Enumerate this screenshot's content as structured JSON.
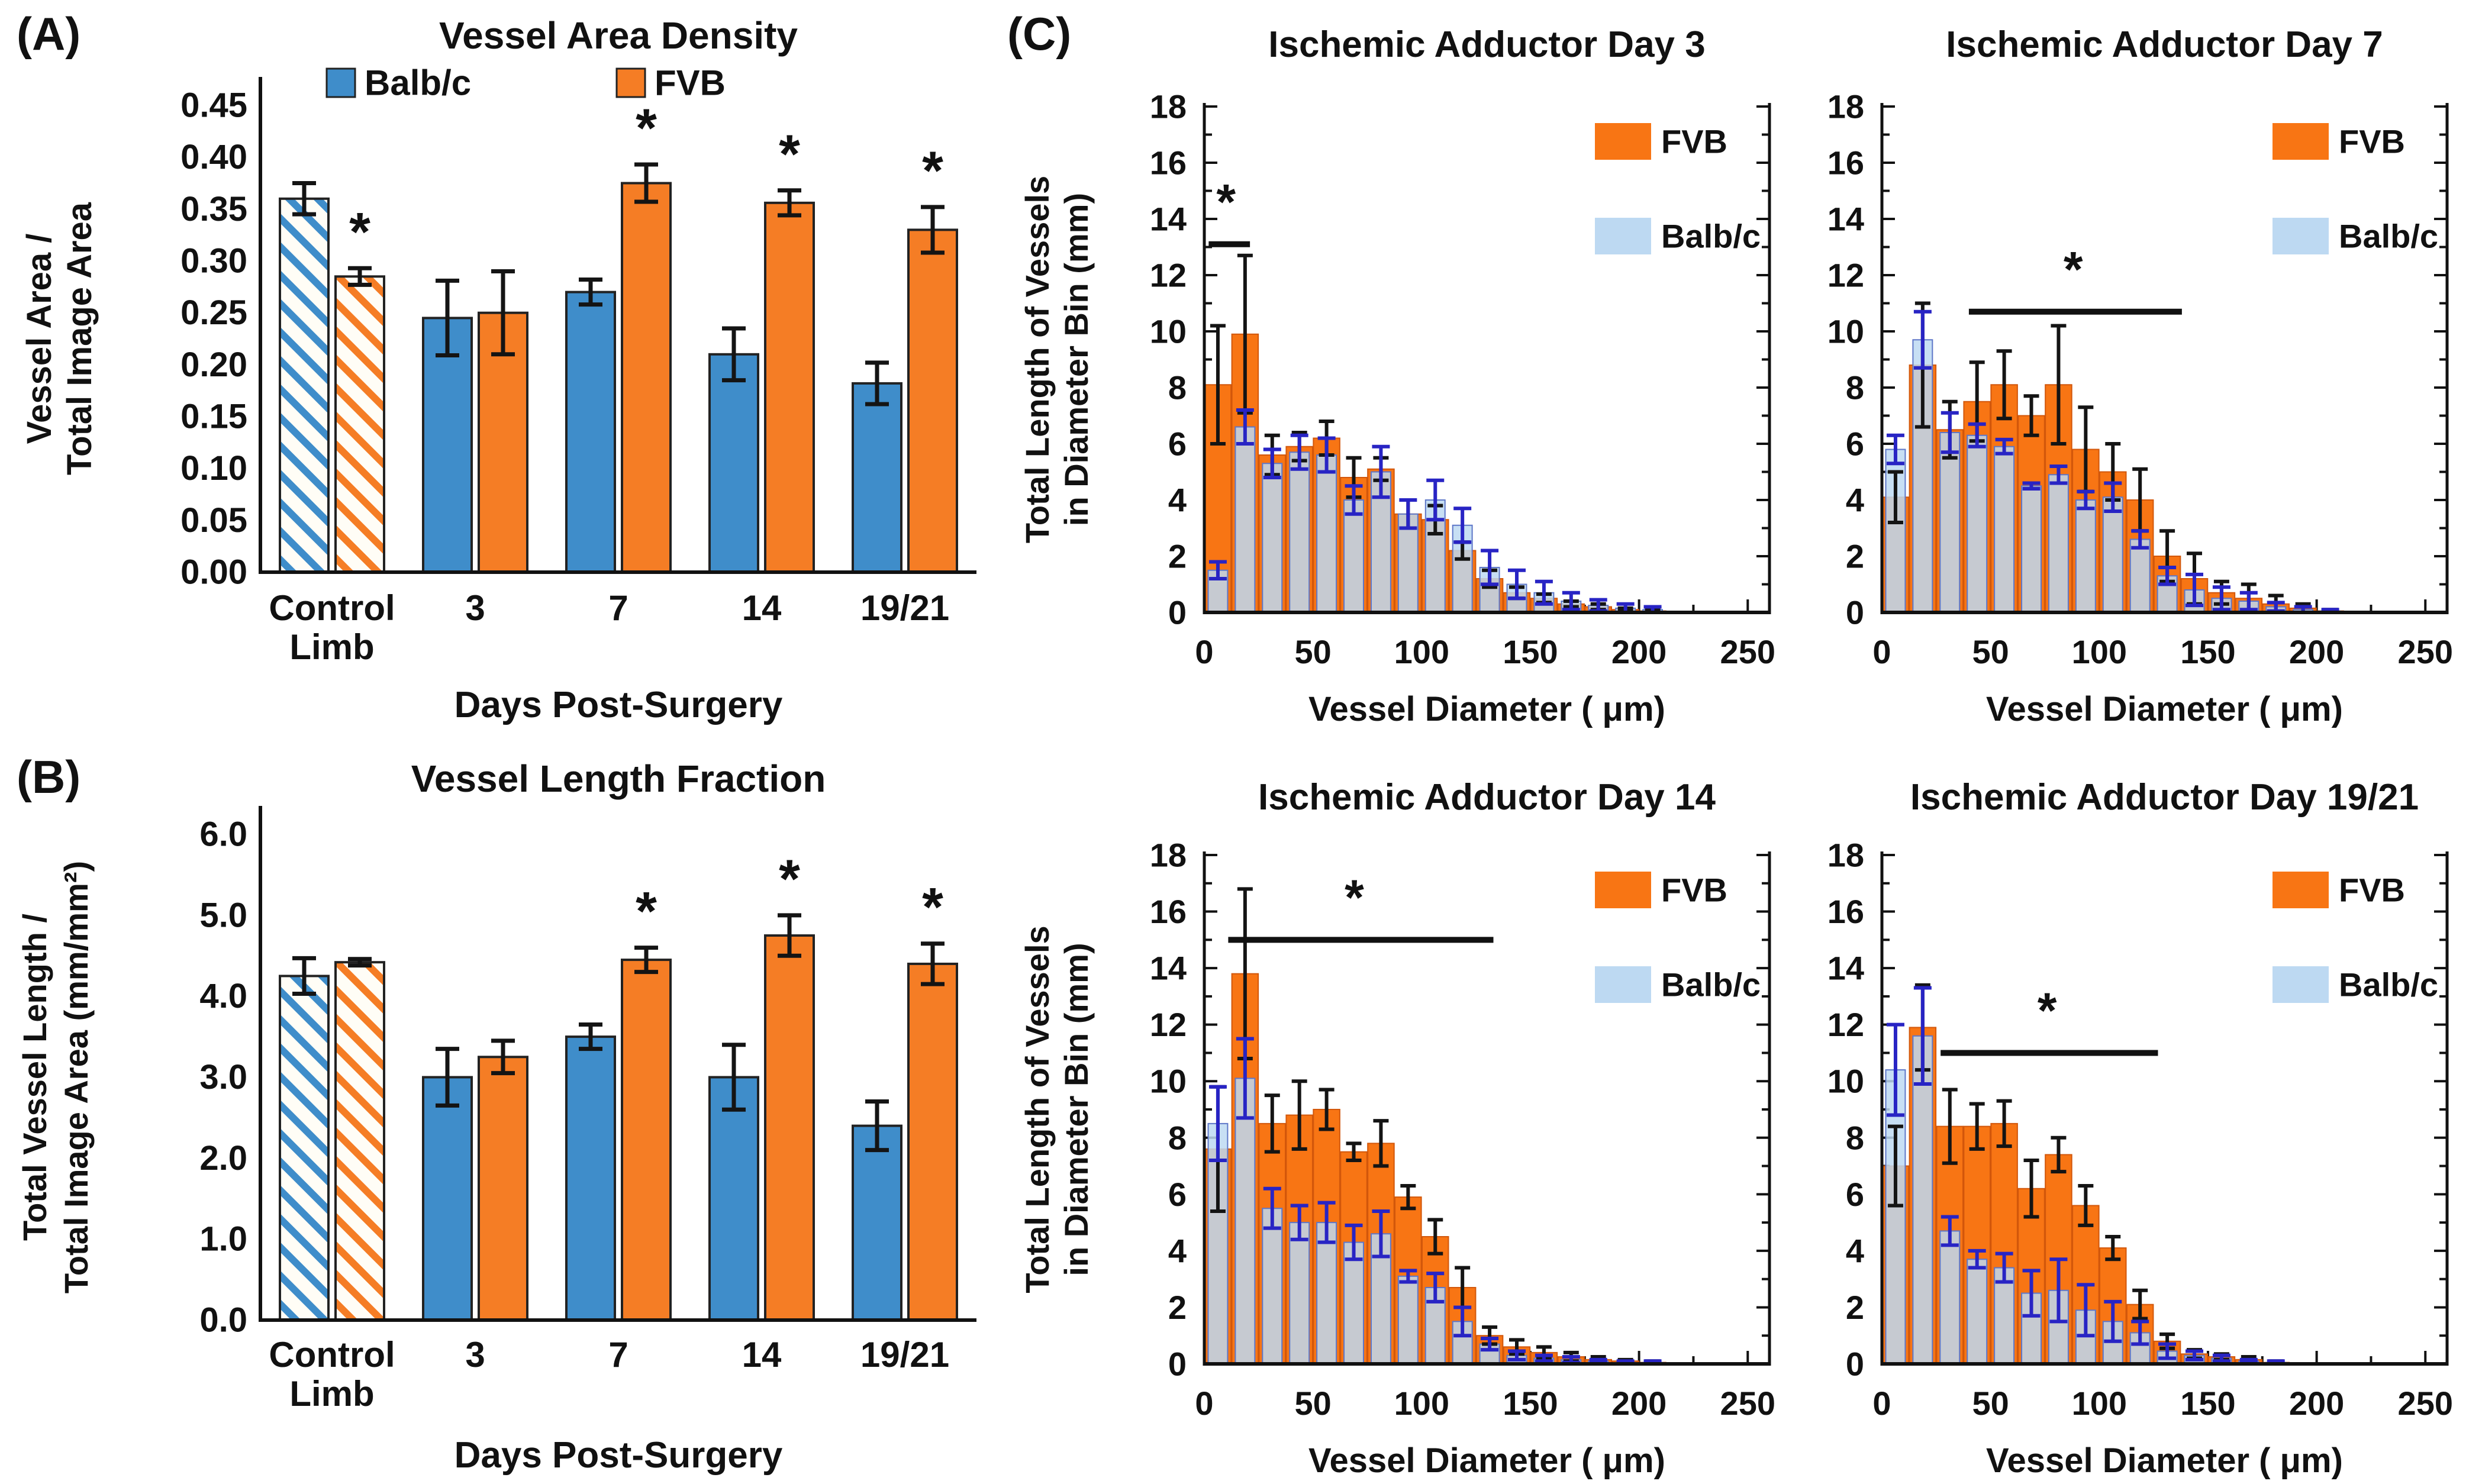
{
  "figure": {
    "panel_labels": {
      "a": "(A)",
      "b": "(B)",
      "c": "(C)"
    },
    "colors": {
      "balbc_solid": "#3F8DCA",
      "fvb_solid": "#F57D25",
      "fvb_hist": "#F87514",
      "balbc_hist": "#BDD9F2",
      "error_navy": "#2824C4",
      "error_black": "#141414",
      "axis": "#111111",
      "hatch_bg": "#FFFDF6"
    }
  },
  "chart_data": [
    {
      "id": "vessel_area_density",
      "type": "bar",
      "title": "Vessel Area Density",
      "ylabel_lines": [
        "Vessel Area /",
        "Total Image Area"
      ],
      "xlabel": "Days Post-Surgery",
      "categories": [
        "Control\nLimb",
        "3",
        "7",
        "14",
        "19/21"
      ],
      "hatched_categories": [
        0
      ],
      "ylim": [
        0,
        0.45
      ],
      "yticks": [
        "0.00",
        "0.05",
        "0.10",
        "0.15",
        "0.20",
        "0.25",
        "0.30",
        "0.35",
        "0.40",
        "0.45"
      ],
      "legend": {
        "show": true,
        "labels": [
          "Balb/c",
          "FVB"
        ]
      },
      "series": [
        {
          "name": "Balb/c",
          "values": [
            0.36,
            0.245,
            0.27,
            0.21,
            0.182
          ],
          "errors": [
            0.015,
            0.036,
            0.012,
            0.025,
            0.02
          ]
        },
        {
          "name": "FVB",
          "values": [
            0.285,
            0.25,
            0.375,
            0.356,
            0.33
          ],
          "errors": [
            0.008,
            0.04,
            0.018,
            0.012,
            0.022
          ]
        }
      ],
      "stars": [
        {
          "series": "FVB",
          "category": 0
        },
        {
          "series": "FVB",
          "category": 2
        },
        {
          "series": "FVB",
          "category": 3
        },
        {
          "series": "FVB",
          "category": 4
        }
      ]
    },
    {
      "id": "vessel_length_fraction",
      "type": "bar",
      "title": "Vessel Length Fraction",
      "ylabel_lines": [
        "Total Vessel Length /",
        "Total Image Area (mm/mm²)"
      ],
      "xlabel": "Days Post-Surgery",
      "categories": [
        "Control\nLimb",
        "3",
        "7",
        "14",
        "19/21"
      ],
      "hatched_categories": [
        0
      ],
      "ylim": [
        0,
        6
      ],
      "yticks": [
        "0.0",
        "1.0",
        "2.0",
        "3.0",
        "4.0",
        "5.0",
        "6.0"
      ],
      "legend": {
        "show": false,
        "labels": [
          "Balb/c",
          "FVB"
        ]
      },
      "series": [
        {
          "name": "Balb/c",
          "values": [
            4.25,
            3.0,
            3.5,
            3.0,
            2.4
          ],
          "errors": [
            0.22,
            0.35,
            0.15,
            0.4,
            0.3
          ]
        },
        {
          "name": "FVB",
          "values": [
            4.42,
            3.25,
            4.45,
            4.75,
            4.4
          ],
          "errors": [
            0.04,
            0.2,
            0.15,
            0.25,
            0.25
          ]
        }
      ],
      "stars": [
        {
          "series": "FVB",
          "category": 2
        },
        {
          "series": "FVB",
          "category": 3
        },
        {
          "series": "FVB",
          "category": 4
        }
      ]
    },
    {
      "id": "ischemic_adductor_day_3",
      "type": "histogram",
      "title": "Ischemic Adductor Day 3",
      "ylabel_lines": [
        "Total Length of Vessels",
        "in Diameter Bin (mm)"
      ],
      "xlabel": "Vessel Diameter ( μm)",
      "bin_start_um": 0,
      "bin_width_um": 12.5,
      "xlim": [
        0,
        260
      ],
      "ylim": [
        0,
        18
      ],
      "xticks": [
        0,
        50,
        100,
        150,
        200,
        250
      ],
      "yticks": [
        0,
        2,
        4,
        6,
        8,
        10,
        12,
        14,
        16,
        18
      ],
      "legend": {
        "show": true,
        "labels": [
          "FVB",
          "Balb/c"
        ]
      },
      "series": [
        {
          "name": "FVB",
          "values": [
            8.1,
            9.9,
            5.6,
            5.9,
            6.2,
            4.8,
            5.1,
            3.5,
            3.3,
            2.2,
            1.2,
            0.7,
            0.5,
            0.3,
            0.2,
            0.1,
            0.05
          ],
          "errors": [
            2.1,
            2.8,
            0.7,
            0.5,
            0.6,
            0.7,
            0.4,
            0.5,
            0.5,
            0.3,
            0.3,
            0.2,
            0.15,
            0.1,
            0.1,
            0.05,
            0.05
          ]
        },
        {
          "name": "Balb/c",
          "values": [
            1.5,
            6.6,
            5.3,
            5.7,
            5.6,
            4.0,
            5.0,
            3.5,
            4.0,
            3.1,
            1.6,
            1.0,
            0.7,
            0.4,
            0.25,
            0.15,
            0.1
          ],
          "errors": [
            0.3,
            0.6,
            0.5,
            0.6,
            0.6,
            0.5,
            0.9,
            0.5,
            0.7,
            0.6,
            0.6,
            0.5,
            0.4,
            0.3,
            0.2,
            0.15,
            0.1
          ]
        }
      ],
      "significance": {
        "x1": 2,
        "x2": 21,
        "y": 13.1,
        "star_x": 10,
        "star_y": 14.0
      }
    },
    {
      "id": "ischemic_adductor_day_7",
      "type": "histogram",
      "title": "Ischemic Adductor Day 7",
      "xlabel": "Vessel Diameter ( μm)",
      "bin_start_um": 0,
      "bin_width_um": 12.5,
      "xlim": [
        0,
        260
      ],
      "ylim": [
        0,
        18
      ],
      "xticks": [
        0,
        50,
        100,
        150,
        200,
        250
      ],
      "yticks": [
        0,
        2,
        4,
        6,
        8,
        10,
        12,
        14,
        16,
        18
      ],
      "legend": {
        "show": true,
        "labels": [
          "FVB",
          "Balb/c"
        ]
      },
      "series": [
        {
          "name": "FVB",
          "values": [
            4.1,
            8.8,
            6.5,
            7.5,
            8.1,
            7.0,
            8.1,
            5.8,
            5.0,
            4.0,
            2.0,
            1.2,
            0.7,
            0.5,
            0.3,
            0.15,
            0.05
          ],
          "errors": [
            0.9,
            2.2,
            1.0,
            1.4,
            1.2,
            0.7,
            2.1,
            1.5,
            1.0,
            1.1,
            0.9,
            0.9,
            0.4,
            0.5,
            0.3,
            0.15,
            0.05
          ]
        },
        {
          "name": "Balb/c",
          "values": [
            5.8,
            9.7,
            6.4,
            6.3,
            5.9,
            4.5,
            4.9,
            4.0,
            4.1,
            2.6,
            1.3,
            0.8,
            0.5,
            0.4,
            0.2,
            0.1,
            0.05
          ],
          "errors": [
            0.5,
            1.0,
            0.7,
            0.4,
            0.25,
            0.1,
            0.3,
            0.3,
            0.5,
            0.3,
            0.3,
            0.55,
            0.4,
            0.3,
            0.15,
            0.1,
            0.05
          ]
        }
      ],
      "significance": {
        "x1": 40,
        "x2": 138,
        "y": 10.7,
        "star_x": 88,
        "star_y": 11.6
      }
    },
    {
      "id": "ischemic_adductor_day_14",
      "type": "histogram",
      "title": "Ischemic Adductor Day 14",
      "ylabel_lines": [
        "Total Length of Vessels",
        "in Diameter Bin (mm)"
      ],
      "xlabel": "Vessel Diameter ( μm)",
      "bin_start_um": 0,
      "bin_width_um": 12.5,
      "xlim": [
        0,
        260
      ],
      "ylim": [
        0,
        18
      ],
      "xticks": [
        0,
        50,
        100,
        150,
        200,
        250
      ],
      "yticks": [
        0,
        2,
        4,
        6,
        8,
        10,
        12,
        14,
        16,
        18
      ],
      "legend": {
        "show": true,
        "labels": [
          "FVB",
          "Balb/c"
        ]
      },
      "series": [
        {
          "name": "FVB",
          "values": [
            7.6,
            13.8,
            8.5,
            8.8,
            9.0,
            7.5,
            7.8,
            5.9,
            4.5,
            2.7,
            1.0,
            0.6,
            0.4,
            0.25,
            0.15,
            0.1,
            0.05
          ],
          "errors": [
            2.2,
            3.0,
            1.0,
            1.2,
            0.7,
            0.3,
            0.8,
            0.4,
            0.6,
            0.7,
            0.3,
            0.25,
            0.2,
            0.15,
            0.1,
            0.05,
            0.05
          ]
        },
        {
          "name": "Balb/c",
          "values": [
            8.5,
            10.1,
            5.5,
            5.0,
            5.0,
            4.3,
            4.6,
            3.1,
            2.7,
            1.5,
            0.7,
            0.3,
            0.2,
            0.15,
            0.1,
            0.05,
            0.05
          ],
          "errors": [
            1.3,
            1.4,
            0.7,
            0.6,
            0.7,
            0.6,
            0.8,
            0.2,
            0.5,
            0.5,
            0.2,
            0.15,
            0.1,
            0.1,
            0.05,
            0.05,
            0.05
          ]
        }
      ],
      "significance": {
        "x1": 11,
        "x2": 133,
        "y": 15.0,
        "star_x": 69,
        "star_y": 15.9
      }
    },
    {
      "id": "ischemic_adductor_day_19_21",
      "type": "histogram",
      "title": "Ischemic Adductor Day 19/21",
      "xlabel": "Vessel Diameter ( μm)",
      "bin_start_um": 0,
      "bin_width_um": 12.5,
      "xlim": [
        0,
        260
      ],
      "ylim": [
        0,
        18
      ],
      "xticks": [
        0,
        50,
        100,
        150,
        200,
        250
      ],
      "yticks": [
        0,
        2,
        4,
        6,
        8,
        10,
        12,
        14,
        16,
        18
      ],
      "legend": {
        "show": true,
        "labels": [
          "FVB",
          "Balb/c"
        ]
      },
      "series": [
        {
          "name": "FVB",
          "values": [
            7.0,
            11.9,
            8.4,
            8.4,
            8.5,
            6.2,
            7.4,
            5.6,
            4.1,
            2.1,
            0.8,
            0.35,
            0.25,
            0.15,
            0.05,
            0,
            0
          ],
          "errors": [
            1.4,
            1.5,
            1.3,
            0.8,
            0.8,
            1.0,
            0.6,
            0.7,
            0.4,
            0.5,
            0.25,
            0.15,
            0.1,
            0.1,
            0.05,
            0,
            0
          ]
        },
        {
          "name": "Balb/c",
          "values": [
            10.4,
            11.6,
            4.7,
            3.7,
            3.4,
            2.5,
            2.6,
            1.9,
            1.5,
            1.1,
            0.45,
            0.3,
            0.2,
            0.1,
            0.05,
            0,
            0
          ],
          "errors": [
            1.6,
            1.7,
            0.5,
            0.3,
            0.5,
            0.8,
            1.1,
            0.9,
            0.7,
            0.4,
            0.25,
            0.15,
            0.1,
            0.05,
            0.05,
            0,
            0
          ]
        }
      ],
      "significance": {
        "x1": 27,
        "x2": 127,
        "y": 11.0,
        "star_x": 76,
        "star_y": 11.9
      }
    }
  ]
}
